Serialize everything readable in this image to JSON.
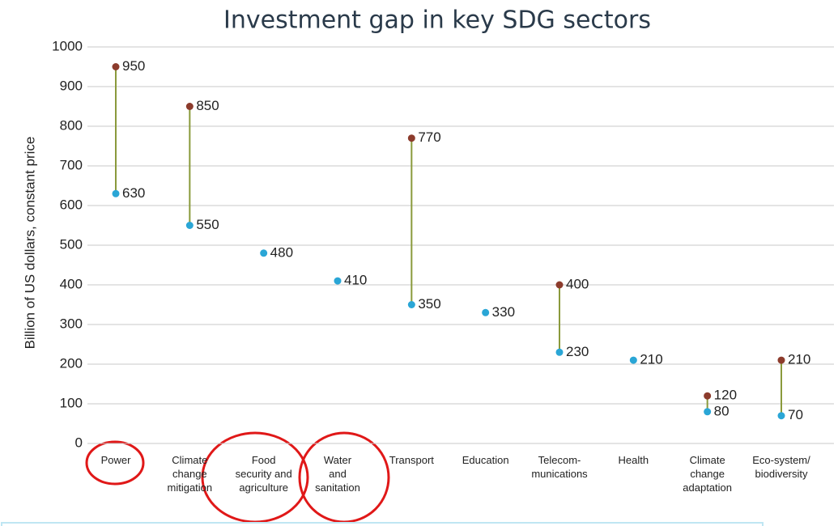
{
  "chart_data": {
    "type": "dumbbell",
    "title": "Investment gap in key SDG sectors",
    "y_label": "Billion of US dollars, constant price",
    "categories": [
      "Power",
      "Climate\nchange\nmitigation",
      "Food\nsecurity and\nagriculture",
      "Water\nand\nsanitation",
      "Transport",
      "Education",
      "Telecom-\nmunications",
      "Health",
      "Climate\nchange\nadaptation",
      "Eco-system/\nbiodiversity"
    ],
    "series": [
      {
        "color": "#2aa6d6",
        "values": [
          630,
          550,
          480,
          410,
          350,
          330,
          230,
          210,
          80,
          70
        ]
      },
      {
        "color": "#8c3b2c",
        "values": [
          950,
          850,
          null,
          null,
          770,
          null,
          400,
          null,
          120,
          210
        ]
      }
    ],
    "connector_color": "#8a9a3c",
    "ylim": [
      0,
      1000
    ],
    "yticks": [
      0,
      100,
      200,
      300,
      400,
      500,
      600,
      700,
      800,
      900,
      1000
    ],
    "grid": true
  }
}
